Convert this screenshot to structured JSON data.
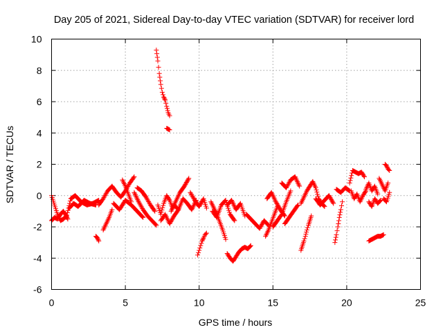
{
  "chart_data": {
    "type": "scatter",
    "title": "Day 205 of 2021, Sidereal Day-to-day VTEC variation (SDTVAR) for receiver lord",
    "xlabel": "GPS time / hours",
    "ylabel": "SDTVAR / TECUs",
    "xlim": [
      0,
      25
    ],
    "ylim": [
      -6,
      10
    ],
    "xticks": [
      0,
      5,
      10,
      15,
      20,
      25
    ],
    "yticks": [
      -6,
      -4,
      -2,
      0,
      2,
      4,
      6,
      8,
      10
    ],
    "xtick_labels": [
      "0",
      "5",
      "10",
      "15",
      "20",
      "25"
    ],
    "ytick_labels": [
      "-6",
      "-4",
      "-2",
      "0",
      "2",
      "4",
      "6",
      "8",
      "10"
    ],
    "grid": true,
    "marker": "+",
    "color": "#ff0000",
    "series": [
      {
        "name": "SDTVAR",
        "tracks": [
          {
            "x": [
              0.0,
              0.2,
              0.4,
              0.6,
              0.8,
              1.0
            ],
            "y": [
              0.0,
              -0.6,
              -1.2,
              -1.6,
              -1.5,
              -1.3
            ]
          },
          {
            "x": [
              0.0,
              0.2,
              0.4,
              0.6,
              0.8,
              1.0,
              1.1
            ],
            "y": [
              -1.6,
              -1.4,
              -1.5,
              -1.2,
              -1.0,
              -1.3,
              -1.5
            ]
          },
          {
            "x": [
              1.0,
              1.3,
              1.6,
              2.0,
              2.4,
              2.8,
              3.2
            ],
            "y": [
              -1.4,
              -0.2,
              0.0,
              -0.4,
              -0.6,
              -0.5,
              -0.3
            ]
          },
          {
            "x": [
              1.2,
              1.5,
              1.8,
              2.2,
              2.6,
              3.0
            ],
            "y": [
              -0.8,
              -0.5,
              -0.7,
              -0.3,
              -0.5,
              -0.6
            ]
          },
          {
            "x": [
              3.0,
              3.1,
              3.2
            ],
            "y": [
              -2.6,
              -2.7,
              -2.9
            ]
          },
          {
            "x": [
              3.2,
              3.5,
              3.8,
              4.1,
              4.4,
              4.7,
              5.0,
              5.3,
              5.6
            ],
            "y": [
              -0.6,
              -0.2,
              0.3,
              0.6,
              0.2,
              -0.1,
              0.3,
              0.8,
              1.2
            ]
          },
          {
            "x": [
              3.5,
              3.7,
              3.9,
              4.1
            ],
            "y": [
              -2.2,
              -1.8,
              -1.4,
              -0.9
            ]
          },
          {
            "x": [
              4.2,
              4.6,
              5.0,
              5.4,
              5.8,
              6.2
            ],
            "y": [
              -0.5,
              -0.9,
              -0.3,
              -0.6,
              -1.0,
              -1.4
            ]
          },
          {
            "x": [
              4.8,
              5.0,
              5.2,
              5.4
            ],
            "y": [
              1.0,
              0.6,
              0.1,
              -0.4
            ]
          },
          {
            "x": [
              5.6,
              5.9,
              6.2,
              6.5,
              6.8,
              7.1
            ],
            "y": [
              0.2,
              -0.4,
              -0.9,
              -1.3,
              -1.6,
              -1.9
            ]
          },
          {
            "x": [
              5.8,
              6.1,
              6.4,
              6.7,
              7.0
            ],
            "y": [
              0.5,
              0.3,
              -0.1,
              -0.6,
              -1.0
            ]
          },
          {
            "x": [
              7.1,
              7.2,
              7.3,
              7.4,
              7.5,
              7.6,
              7.7,
              7.8,
              7.9,
              8.0
            ],
            "y": [
              9.3,
              8.6,
              7.8,
              7.1,
              6.6,
              6.3,
              6.1,
              5.7,
              5.3,
              5.1
            ]
          },
          {
            "x": [
              7.8,
              8.0
            ],
            "y": [
              4.3,
              4.2
            ]
          },
          {
            "x": [
              7.2,
              7.4,
              7.6,
              7.8,
              8.0,
              8.2
            ],
            "y": [
              -0.6,
              -1.2,
              -0.5,
              0.0,
              -0.3,
              -0.8
            ]
          },
          {
            "x": [
              7.4,
              7.7,
              8.0,
              8.3,
              8.6
            ],
            "y": [
              -1.6,
              -1.2,
              -1.8,
              -1.3,
              -0.9
            ]
          },
          {
            "x": [
              8.1,
              8.4,
              8.7,
              9.0,
              9.3
            ],
            "y": [
              -1.0,
              -0.4,
              0.2,
              0.6,
              1.1
            ]
          },
          {
            "x": [
              8.3,
              8.6,
              8.9,
              9.2,
              9.5,
              9.8
            ],
            "y": [
              -0.6,
              -0.9,
              -0.2,
              -0.5,
              -0.9,
              -0.3
            ]
          },
          {
            "x": [
              9.4,
              9.7,
              10.0,
              10.3,
              10.5
            ],
            "y": [
              0.2,
              -0.3,
              -0.7,
              -0.2,
              -0.8
            ]
          },
          {
            "x": [
              9.9,
              10.0,
              10.1,
              10.2,
              10.3,
              10.4,
              10.5
            ],
            "y": [
              -3.8,
              -3.5,
              -3.2,
              -2.9,
              -2.7,
              -2.5,
              -2.4
            ]
          },
          {
            "x": [
              10.8,
              11.0,
              11.2,
              11.4,
              11.6,
              11.8
            ],
            "y": [
              -0.4,
              -0.8,
              -1.2,
              -1.7,
              -2.2,
              -2.8
            ]
          },
          {
            "x": [
              10.9,
              11.2,
              11.5,
              11.8,
              12.1,
              12.4
            ],
            "y": [
              -1.0,
              -1.4,
              -0.6,
              -0.3,
              -1.2,
              -1.6
            ]
          },
          {
            "x": [
              11.9,
              12.1,
              12.3,
              12.5,
              12.7,
              12.9,
              13.1,
              13.3,
              13.5
            ],
            "y": [
              -3.7,
              -4.0,
              -4.2,
              -3.9,
              -3.6,
              -3.4,
              -3.3,
              -3.4,
              -3.2
            ]
          },
          {
            "x": [
              11.9,
              12.2,
              12.5,
              12.8,
              13.1
            ],
            "y": [
              -0.6,
              -0.3,
              -0.9,
              -0.5,
              -1.3
            ]
          },
          {
            "x": [
              13.2,
              13.5,
              13.8,
              14.1,
              14.4,
              14.7
            ],
            "y": [
              -1.2,
              -1.5,
              -1.8,
              -2.1,
              -1.6,
              -1.9
            ]
          },
          {
            "x": [
              14.5,
              14.7,
              14.9,
              15.1,
              15.3
            ],
            "y": [
              -2.6,
              -2.2,
              -1.7,
              -1.2,
              -0.7
            ]
          },
          {
            "x": [
              14.6,
              14.9,
              15.2,
              15.5,
              15.8
            ],
            "y": [
              -0.2,
              0.2,
              -0.4,
              -0.9,
              -1.3
            ]
          },
          {
            "x": [
              15.0,
              15.3,
              15.6,
              15.9,
              16.2
            ],
            "y": [
              -2.0,
              -1.6,
              -1.2,
              -0.4,
              0.3
            ]
          },
          {
            "x": [
              15.6,
              15.9,
              16.2,
              16.5,
              16.8
            ],
            "y": [
              0.8,
              0.5,
              1.0,
              1.2,
              0.6
            ]
          },
          {
            "x": [
              15.8,
              16.1,
              16.4,
              16.7
            ],
            "y": [
              -1.8,
              -1.4,
              -1.0,
              -0.6
            ]
          },
          {
            "x": [
              16.9,
              17.0,
              17.1,
              17.2,
              17.3,
              17.4,
              17.5,
              17.6
            ],
            "y": [
              -3.5,
              -3.2,
              -2.9,
              -2.6,
              -2.2,
              -1.9,
              -1.6,
              -1.3
            ]
          },
          {
            "x": [
              16.9,
              17.1,
              17.3,
              17.5,
              17.7,
              17.9,
              18.1,
              18.3,
              18.5
            ],
            "y": [
              -0.5,
              -0.1,
              0.3,
              0.6,
              0.9,
              0.5,
              -0.2,
              -0.5,
              -0.7
            ]
          },
          {
            "x": [
              17.9,
              18.2,
              18.5,
              18.8,
              19.1
            ],
            "y": [
              -0.2,
              -0.6,
              -0.3,
              0.0,
              -0.5
            ]
          },
          {
            "x": [
              19.2,
              19.3,
              19.4,
              19.5,
              19.6,
              19.7
            ],
            "y": [
              -3.0,
              -2.5,
              -2.0,
              -1.4,
              -0.9,
              -0.4
            ]
          },
          {
            "x": [
              19.3,
              19.6,
              19.9,
              20.2
            ],
            "y": [
              0.4,
              0.2,
              0.5,
              0.3
            ]
          },
          {
            "x": [
              20.2,
              20.4,
              20.6,
              20.8,
              21.0,
              21.2
            ],
            "y": [
              0.8,
              1.6,
              1.5,
              1.4,
              1.5,
              1.2
            ]
          },
          {
            "x": [
              20.3,
              20.5,
              20.7,
              20.9,
              21.1,
              21.3
            ],
            "y": [
              0.3,
              -0.2,
              0.1,
              -0.4,
              0.0,
              0.3
            ]
          },
          {
            "x": [
              21.3,
              21.5,
              21.7,
              21.9,
              22.1
            ],
            "y": [
              0.4,
              0.8,
              0.3,
              0.6,
              0.1
            ]
          },
          {
            "x": [
              21.5,
              21.7,
              21.9,
              22.1,
              22.3
            ],
            "y": [
              -0.4,
              -0.7,
              -0.2,
              -0.5,
              -0.3
            ]
          },
          {
            "x": [
              21.5,
              21.7,
              21.9,
              22.1,
              22.3,
              22.5
            ],
            "y": [
              -2.9,
              -2.8,
              -2.7,
              -2.6,
              -2.6,
              -2.5
            ]
          },
          {
            "x": [
              22.2,
              22.4,
              22.6,
              22.8
            ],
            "y": [
              1.1,
              0.7,
              0.3,
              0.8
            ]
          },
          {
            "x": [
              22.6,
              22.7,
              22.8,
              22.9
            ],
            "y": [
              2.0,
              1.9,
              1.7,
              1.6
            ]
          },
          {
            "x": [
              22.5,
              22.7,
              22.9
            ],
            "y": [
              -0.2,
              -0.4,
              0.2
            ]
          }
        ]
      }
    ]
  }
}
